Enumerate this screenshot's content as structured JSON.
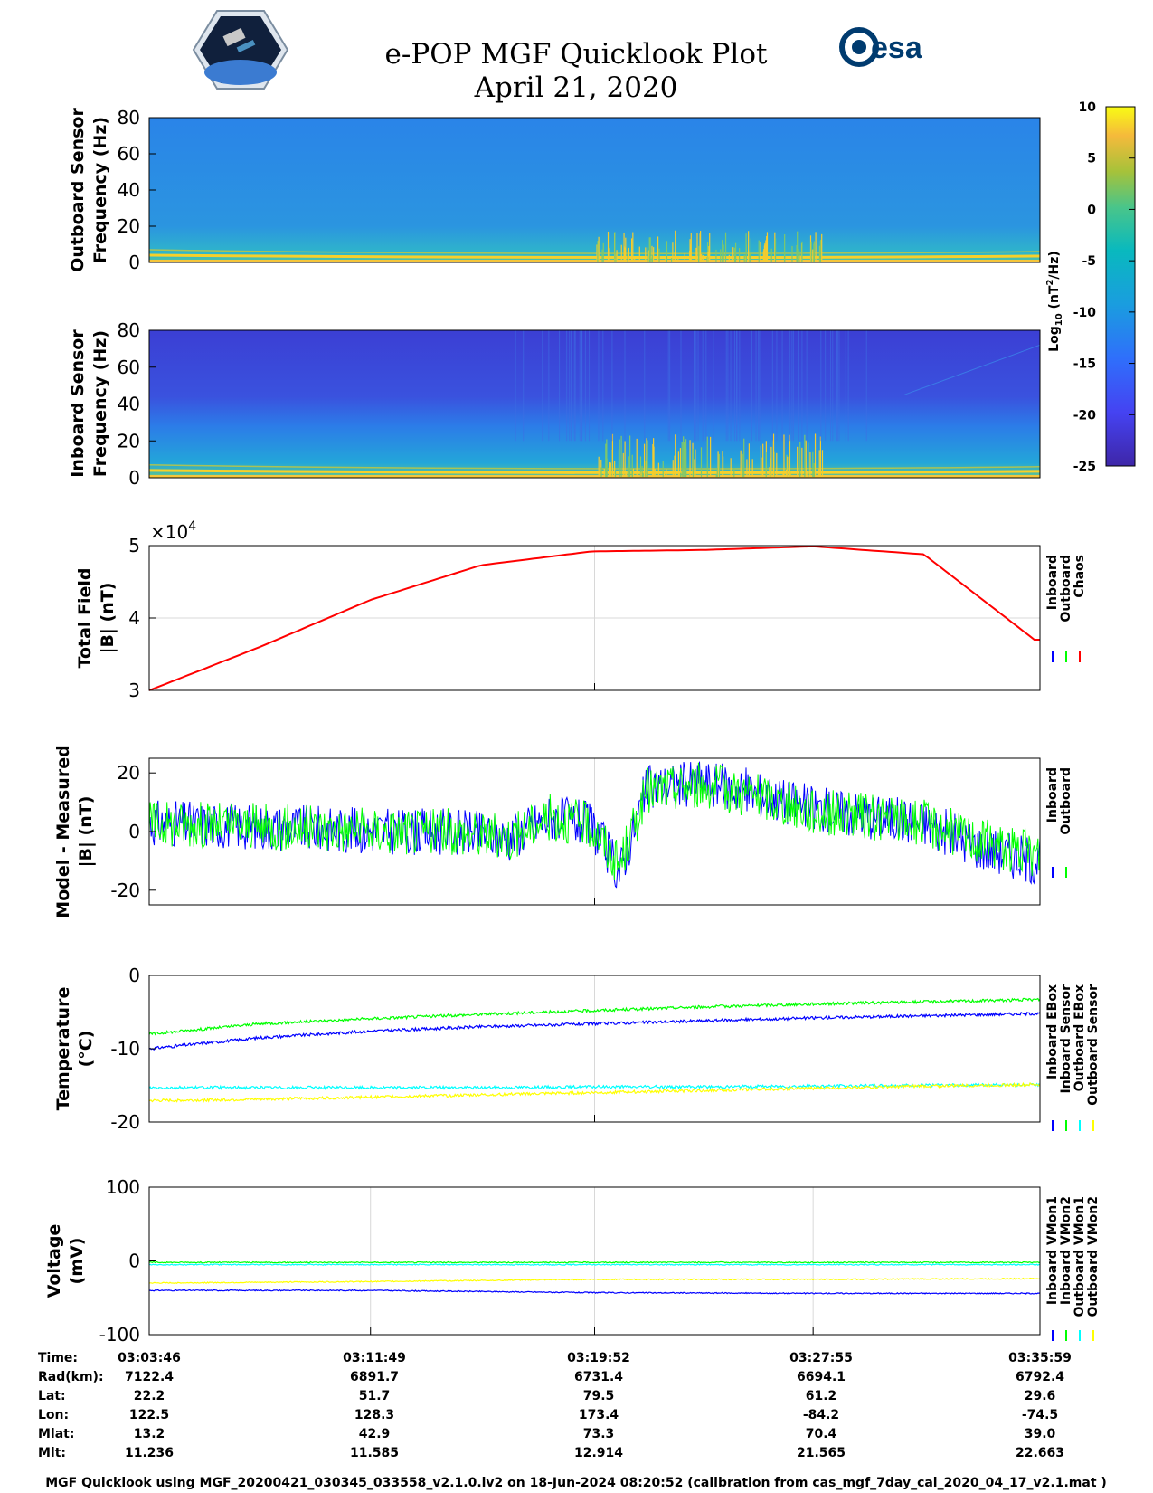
{
  "title": {
    "line1": "e-POP MGF Quicklook Plot",
    "line2": "April 21, 2020"
  },
  "logos": {
    "left": "cassiope-mission-logo",
    "right_text": "esa"
  },
  "colors": {
    "inboard": "#0000ff",
    "outboard": "#00ff00",
    "chaos": "#ff0000",
    "cyan": "#00ffff",
    "yellow": "#ffff00",
    "spec_bg_outboard": "#2c88e6",
    "spec_bg_inboard": "#3a4ed8"
  },
  "colorbar": {
    "label_base": "Log",
    "label_sub": "10",
    "label_unit": "(nT",
    "label_sup": "2",
    "label_tail": "/Hz)",
    "ticks": [
      "10",
      "5",
      "0",
      "-5",
      "-10",
      "-15",
      "-20",
      "-25"
    ]
  },
  "time_ticks": [
    "03:03:46",
    "03:11:49",
    "03:19:52",
    "03:27:55",
    "03:35:59"
  ],
  "ephemeris": {
    "labels": [
      "Time:",
      "Rad(km):",
      "Lat:",
      "Lon:",
      "Mlat:",
      "Mlt:"
    ],
    "columns": [
      [
        "03:03:46",
        "7122.4",
        "22.2",
        "122.5",
        "13.2",
        "11.236"
      ],
      [
        "03:11:49",
        "6891.7",
        "51.7",
        "128.3",
        "42.9",
        "11.585"
      ],
      [
        "03:19:52",
        "6731.4",
        "79.5",
        "173.4",
        "73.3",
        "12.914"
      ],
      [
        "03:27:55",
        "6694.1",
        "61.2",
        "-84.2",
        "70.4",
        "21.565"
      ],
      [
        "03:35:59",
        "6792.4",
        "29.6",
        "-74.5",
        "39.0",
        "22.663"
      ]
    ]
  },
  "footer": "MGF Quicklook using MGF_20200421_030345_033558_v2.1.0.lv2 on 18-Jun-2024 08:20:52 (calibration from cas_mgf_7day_cal_2020_04_17_v2.1.mat )",
  "chart_data": [
    {
      "type": "heatmap",
      "name": "outboard-spectrogram",
      "ylabel_line1": "Outboard Sensor",
      "ylabel_line2": "Frequency (Hz)",
      "ylim": [
        0,
        80
      ],
      "yticks": [
        "80",
        "60",
        "40",
        "20",
        "0"
      ],
      "clim": [
        -25,
        10
      ]
    },
    {
      "type": "heatmap",
      "name": "inboard-spectrogram",
      "ylabel_line1": "Inboard Sensor",
      "ylabel_line2": "Frequency (Hz)",
      "ylim": [
        0,
        80
      ],
      "yticks": [
        "80",
        "60",
        "40",
        "20",
        "0"
      ],
      "clim": [
        -25,
        10
      ]
    },
    {
      "type": "line",
      "name": "total-field",
      "ylabel_line1": "Total Field",
      "ylabel_line2": "|B| (nT)",
      "ylim": [
        30000,
        50000
      ],
      "yticks": [
        "5",
        "4",
        "3"
      ],
      "exponent_prefix": "×10",
      "exponent": "4",
      "legend": [
        "Inboard",
        "Outboard",
        "Chaos"
      ],
      "x_minutes": [
        0,
        4,
        8,
        12,
        16,
        20,
        24,
        28,
        32
      ],
      "series": [
        {
          "name": "Chaos",
          "values": [
            30000,
            36000,
            42500,
            47300,
            49200,
            49400,
            49900,
            48800,
            37000
          ]
        }
      ]
    },
    {
      "type": "line",
      "name": "model-minus-measured",
      "ylabel_line1": "Model - Measured",
      "ylabel_line2": "|B| (nT)",
      "ylim": [
        -25,
        25
      ],
      "yticks": [
        "20",
        "0",
        "-20"
      ],
      "legend": [
        "Inboard",
        "Outboard"
      ],
      "x_minutes": [
        0,
        3,
        6,
        9,
        11,
        13,
        14.5,
        16,
        17,
        18,
        20,
        22,
        24,
        28,
        30,
        32
      ],
      "series": [
        {
          "name": "Inboard",
          "values": [
            3,
            2,
            1,
            0,
            0,
            -2,
            5,
            2,
            -14,
            15,
            17,
            13,
            8,
            3,
            -5,
            -10
          ]
        },
        {
          "name": "Outboard",
          "values": [
            3,
            2,
            1,
            0,
            0,
            -2,
            5,
            2,
            -12,
            14,
            16,
            12,
            7,
            3,
            -3,
            -8
          ]
        }
      ]
    },
    {
      "type": "line",
      "name": "temperature",
      "ylabel_line1": "Temperature",
      "ylabel_line2": "(°C)",
      "ylim": [
        -20,
        0
      ],
      "yticks": [
        "0",
        "-10",
        "-20"
      ],
      "legend": [
        "Inboard EBox",
        "Inboard Sensor",
        "Outboard EBox",
        "Outboard Sensor"
      ],
      "x_minutes": [
        0,
        4,
        8,
        12,
        16,
        20,
        24,
        28,
        32
      ],
      "series": [
        {
          "name": "Inboard EBox",
          "values": [
            -10,
            -8.5,
            -7.6,
            -7.0,
            -6.6,
            -6.2,
            -5.8,
            -5.5,
            -5.2
          ]
        },
        {
          "name": "Inboard Sensor",
          "values": [
            -8,
            -6.6,
            -5.9,
            -5.3,
            -4.8,
            -4.3,
            -3.9,
            -3.6,
            -3.3
          ]
        },
        {
          "name": "Outboard EBox",
          "values": [
            -15.3,
            -15.3,
            -15.3,
            -15.3,
            -15.2,
            -15.2,
            -15.1,
            -15.0,
            -14.9
          ]
        },
        {
          "name": "Outboard Sensor",
          "values": [
            -17.1,
            -16.9,
            -16.6,
            -16.3,
            -16.0,
            -15.7,
            -15.4,
            -15.1,
            -14.9
          ]
        }
      ]
    },
    {
      "type": "line",
      "name": "voltage",
      "ylabel_line1": "Voltage",
      "ylabel_line2": "(mV)",
      "ylim": [
        -100,
        100
      ],
      "yticks": [
        "100",
        "0",
        "-100"
      ],
      "legend": [
        "Inboard VMon1",
        "Inboard VMon2",
        "Outboard VMon1",
        "Outboard VMon2"
      ],
      "x_minutes": [
        0,
        8,
        16,
        24,
        32
      ],
      "series": [
        {
          "name": "Inboard VMon1",
          "values": [
            -40,
            -40,
            -43,
            -44,
            -44
          ]
        },
        {
          "name": "Inboard VMon2",
          "values": [
            -2,
            -2,
            -2,
            -2,
            -2
          ]
        },
        {
          "name": "Outboard VMon1",
          "values": [
            -5,
            -5,
            -5,
            -5,
            -5
          ]
        },
        {
          "name": "Outboard VMon2",
          "values": [
            -30,
            -28,
            -25,
            -25,
            -24
          ]
        }
      ]
    }
  ]
}
